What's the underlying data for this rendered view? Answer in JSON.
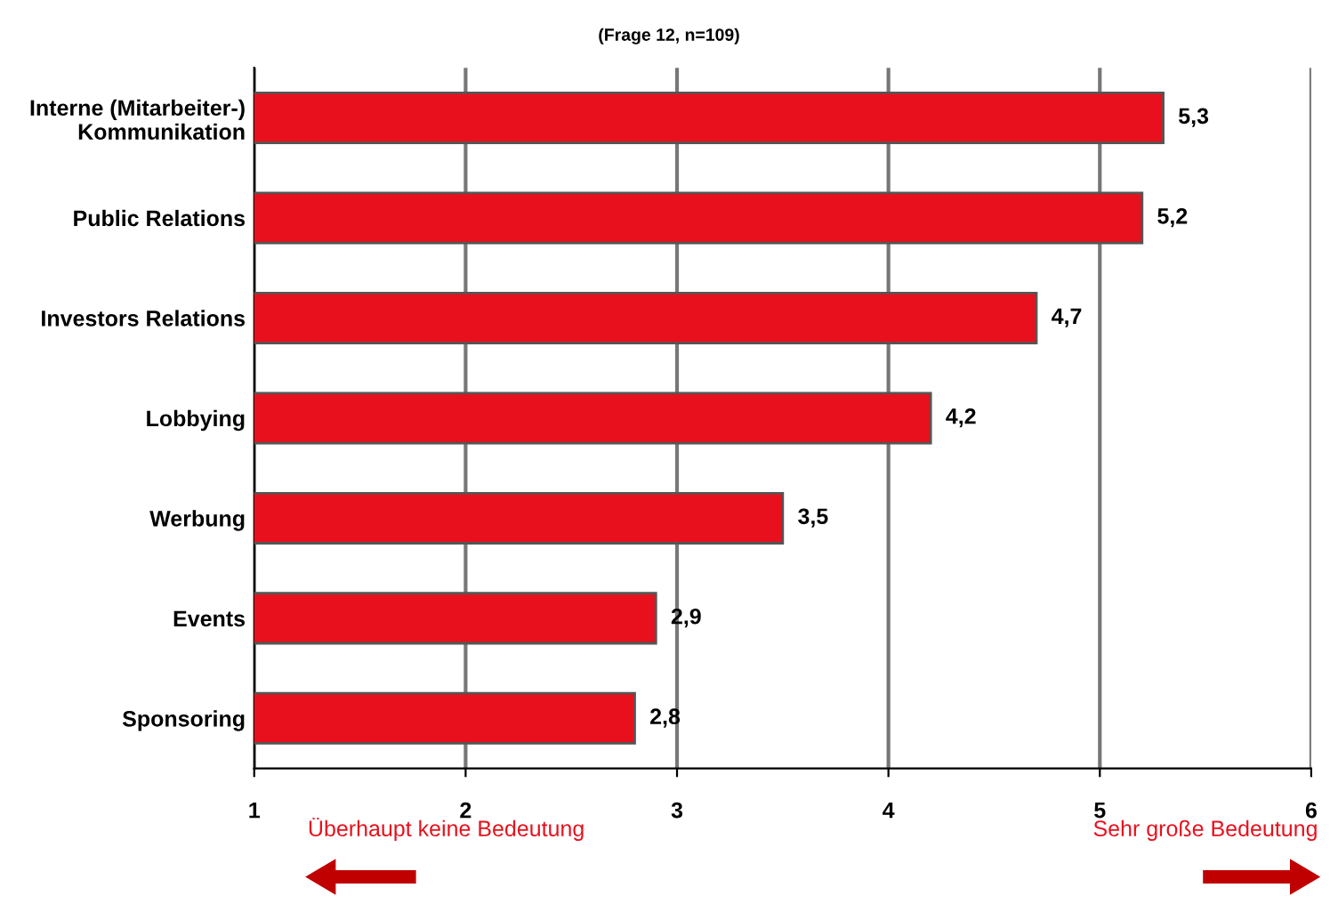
{
  "chart_data": {
    "type": "bar",
    "orientation": "horizontal",
    "subtitle": "(Frage 12, n=109)",
    "categories": [
      "Interne (Mitarbeiter-)\nKommunikation",
      "Public Relations",
      "Investors Relations",
      "Lobbying",
      "Werbung",
      "Events",
      "Sponsoring"
    ],
    "values": [
      5.3,
      5.2,
      4.7,
      4.2,
      3.5,
      2.9,
      2.8
    ],
    "value_labels": [
      "5,3",
      "5,2",
      "4,7",
      "4,2",
      "3,5",
      "2,9",
      "2,8"
    ],
    "color": "#e8101c",
    "xlim": [
      1,
      6
    ],
    "xticks": [
      1,
      2,
      3,
      4,
      5,
      6
    ],
    "grid": "x",
    "annotations": [
      "Überhaupt keine Bedeutung",
      "Sehr große Bedeutung"
    ]
  }
}
